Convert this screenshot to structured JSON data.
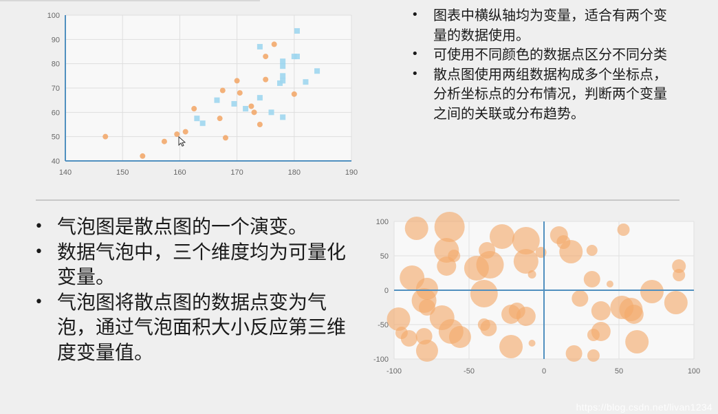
{
  "chart_data": [
    {
      "type": "scatter",
      "title": "",
      "xlabel": "",
      "ylabel": "",
      "xlim": [
        140,
        190
      ],
      "ylim": [
        40,
        100
      ],
      "x_ticks": [
        "140",
        "150",
        "160",
        "170",
        "180",
        "190"
      ],
      "y_ticks": [
        "40",
        "50",
        "60",
        "70",
        "80",
        "90",
        "100"
      ],
      "grid": true,
      "series": [
        {
          "color": "#f2a86c",
          "points": [
            [
              147,
              50
            ],
            [
              153.5,
              42
            ],
            [
              157.3,
              48
            ],
            [
              159.5,
              51
            ],
            [
              161,
              52
            ],
            [
              162.5,
              61.5
            ],
            [
              167,
              57.5
            ],
            [
              167.5,
              69
            ],
            [
              168,
              49.5
            ],
            [
              170,
              73
            ],
            [
              170.5,
              68
            ],
            [
              172.5,
              62.5
            ],
            [
              173,
              60
            ],
            [
              174,
              55
            ],
            [
              175,
              73.5
            ],
            [
              175,
              83
            ],
            [
              176.5,
              88
            ],
            [
              180,
              67.5
            ]
          ]
        },
        {
          "color": "#9fd6ee",
          "points": [
            [
              163,
              57.5
            ],
            [
              164,
              55.5
            ],
            [
              166.5,
              65
            ],
            [
              169.5,
              63.5
            ],
            [
              171.5,
              61.5
            ],
            [
              174,
              66
            ],
            [
              174,
              87
            ],
            [
              176,
              60
            ],
            [
              177.5,
              72
            ],
            [
              178,
              58
            ],
            [
              178,
              73
            ],
            [
              178,
              75
            ],
            [
              178,
              79
            ],
            [
              178,
              81
            ],
            [
              180,
              83
            ],
            [
              180.5,
              83
            ],
            [
              180.5,
              93.5
            ],
            [
              182,
              72.5
            ],
            [
              184,
              77
            ]
          ]
        }
      ]
    },
    {
      "type": "bubble",
      "title": "",
      "xlabel": "",
      "ylabel": "",
      "xlim": [
        -100,
        100
      ],
      "ylim": [
        -100,
        100
      ],
      "x_ticks": [
        "-100",
        "-50",
        "0",
        "50",
        "100"
      ],
      "y_ticks": [
        "100",
        "50",
        "0",
        "-50",
        "-100"
      ],
      "grid": true,
      "color": "#f3a96b",
      "points": [
        [
          -85,
          90,
          17
        ],
        [
          -63,
          92,
          22
        ],
        [
          -65,
          58,
          18
        ],
        [
          -60,
          50,
          9
        ],
        [
          -65,
          35,
          14
        ],
        [
          -45,
          32,
          18
        ],
        [
          -36,
          37,
          20
        ],
        [
          -38,
          58,
          12
        ],
        [
          -28,
          78,
          18
        ],
        [
          -12,
          72,
          20
        ],
        [
          -12,
          42,
          18
        ],
        [
          -8,
          23,
          6
        ],
        [
          -40,
          -5,
          20
        ],
        [
          -37,
          -55,
          12
        ],
        [
          -78,
          2,
          16
        ],
        [
          -80,
          -15,
          18
        ],
        [
          -97,
          -42,
          17
        ],
        [
          -90,
          -70,
          12
        ],
        [
          -95,
          -62,
          9
        ],
        [
          -80,
          -67,
          12
        ],
        [
          -78,
          -88,
          16
        ],
        [
          -68,
          -40,
          18
        ],
        [
          -62,
          -60,
          18
        ],
        [
          -56,
          -68,
          16
        ],
        [
          -22,
          -35,
          14
        ],
        [
          -18,
          -30,
          12
        ],
        [
          -12,
          -38,
          14
        ],
        [
          -22,
          -82,
          17
        ],
        [
          -40,
          -50,
          9
        ],
        [
          -8,
          -77,
          5
        ],
        [
          -88,
          18,
          18
        ],
        [
          -78,
          -25,
          12
        ],
        [
          10,
          80,
          13
        ],
        [
          13,
          70,
          10
        ],
        [
          18,
          56,
          17
        ],
        [
          32,
          58,
          8
        ],
        [
          32,
          16,
          12
        ],
        [
          24,
          -12,
          12
        ],
        [
          38,
          -30,
          14
        ],
        [
          38,
          -60,
          14
        ],
        [
          52,
          -25,
          17
        ],
        [
          58,
          -28,
          17
        ],
        [
          60,
          -35,
          14
        ],
        [
          62,
          -75,
          17
        ],
        [
          72,
          -2,
          17
        ],
        [
          88,
          -18,
          17
        ],
        [
          90,
          35,
          10
        ],
        [
          90,
          22,
          9
        ],
        [
          53,
          88,
          9
        ],
        [
          20,
          -92,
          12
        ],
        [
          33,
          -95,
          9
        ],
        [
          33,
          -65,
          9
        ],
        [
          44,
          9,
          5
        ],
        [
          -2,
          55,
          8
        ]
      ]
    }
  ],
  "bullets_top": [
    "图表中横纵轴均为变量，适合有两个变量的数据使用。",
    "可使用不同颜色的数据点区分不同分类",
    "散点图使用两组数据构成多个坐标点，分析坐标点的分布情况，判断两个变量之间的关联或分布趋势。"
  ],
  "bullets_bottom": [
    "气泡图是散点图的一个演变。",
    "数据气泡中，三个维度均为可量化变量。",
    "气泡图将散点图的数据点变为气泡，通过气泡面积大小反应第三维度变量值。"
  ],
  "watermark": "https://blog.csdn.net/livan1234"
}
